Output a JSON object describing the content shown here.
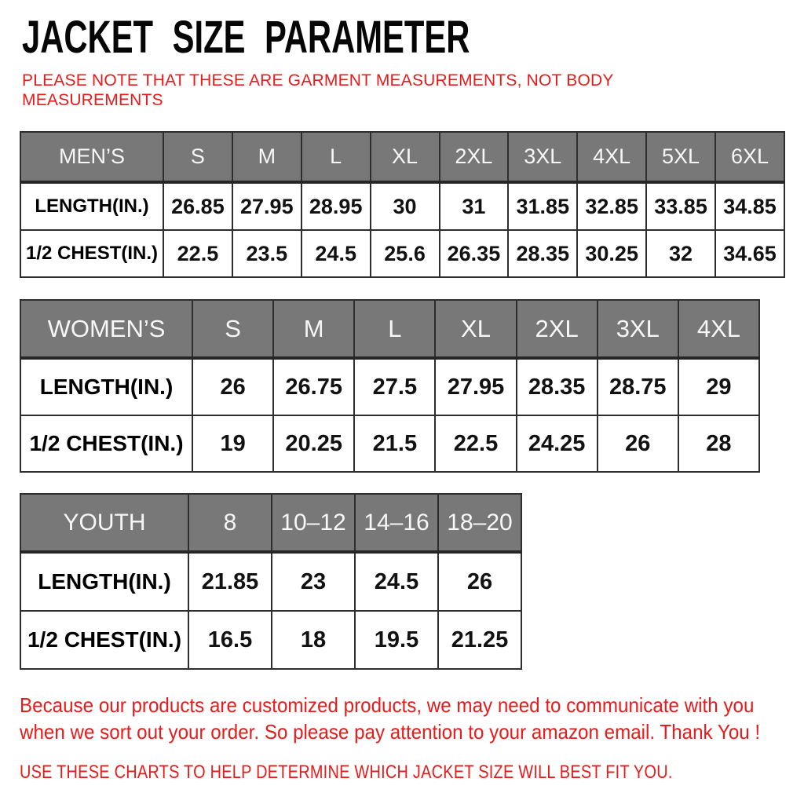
{
  "header": {
    "title": "JACKET SIZE PARAMETER",
    "note_line1": "PLEASE NOTE THAT THESE ARE GARMENT MEASUREMENTS, NOT BODY",
    "note_line2": "MEASUREMENTS"
  },
  "colors": {
    "accent_red": "#e81a1a",
    "header_gray": "#787878",
    "border_dark": "#2e2e2e",
    "cell_white": "#ffffff",
    "title_black": "#060606"
  },
  "tables": [
    {
      "name": "mens",
      "header": [
        "MEN’S",
        "S",
        "M",
        "L",
        "XL",
        "2XL",
        "3XL",
        "4XL",
        "5XL",
        "6XL"
      ],
      "rows": [
        {
          "label": "LENGTH(IN.)",
          "values": [
            "26.85",
            "27.95",
            "28.95",
            "30",
            "31",
            "31.85",
            "32.85",
            "33.85",
            "34.85"
          ]
        },
        {
          "label": "1/2 CHEST(IN.)",
          "values": [
            "22.5",
            "23.5",
            "24.5",
            "25.6",
            "26.35",
            "28.35",
            "30.25",
            "32",
            "34.65"
          ]
        }
      ]
    },
    {
      "name": "womens",
      "header": [
        "WOMEN’S",
        "S",
        "M",
        "L",
        "XL",
        "2XL",
        "3XL",
        "4XL"
      ],
      "rows": [
        {
          "label": "LENGTH(IN.)",
          "values": [
            "26",
            "26.75",
            "27.5",
            "27.95",
            "28.35",
            "28.75",
            "29"
          ]
        },
        {
          "label": "1/2 CHEST(IN.)",
          "values": [
            "19",
            "20.25",
            "21.5",
            "22.5",
            "24.25",
            "26",
            "28"
          ]
        }
      ]
    },
    {
      "name": "youth",
      "header": [
        "YOUTH",
        "8",
        "10–12",
        "14–16",
        "18–20"
      ],
      "rows": [
        {
          "label": "LENGTH(IN.)",
          "values": [
            "21.85",
            "23",
            "24.5",
            "26"
          ]
        },
        {
          "label": "1/2 CHEST(IN.)",
          "values": [
            "16.5",
            "18",
            "19.5",
            "21.25"
          ]
        }
      ]
    }
  ],
  "footer": {
    "para_line1": "Because our products are customized products, we may need to communicate with you",
    "para_line2": "when we sort out your order. So please pay attention to your amazon email. Thank You !",
    "caps_line": "USE THESE CHARTS TO HELP DETERMINE WHICH JACKET SIZE WILL BEST FIT YOU."
  }
}
